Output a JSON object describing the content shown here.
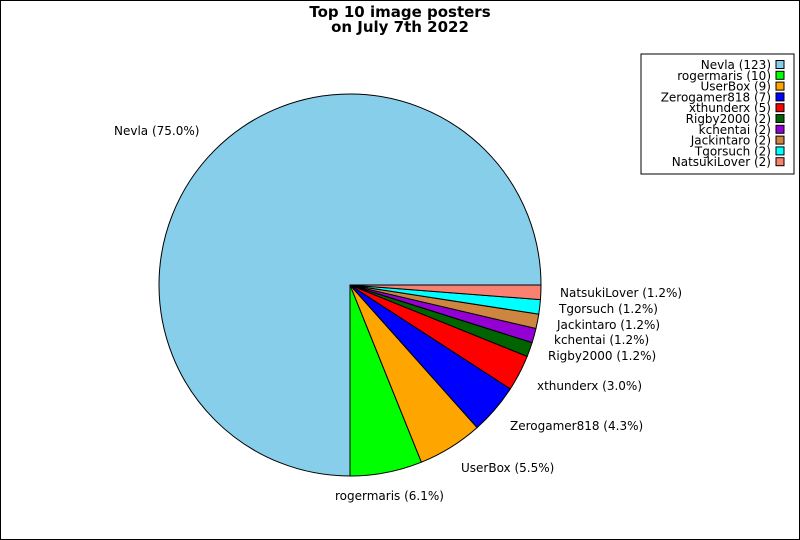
{
  "chart_data": {
    "type": "pie",
    "title": [
      "Top 10 image posters",
      "on July 7th 2022"
    ],
    "start_angle_deg": 0,
    "direction": "clockwise",
    "legend_placement": "top-right",
    "slices": [
      {
        "name": "Nevla",
        "count": 123,
        "percent_label": "Nevla (75.0%)",
        "legend_label": "Nevla (123)",
        "color": "#87ceeb"
      },
      {
        "name": "rogermaris",
        "count": 10,
        "percent_label": "rogermaris (6.1%)",
        "legend_label": "rogermaris (10)",
        "color": "#00ff00"
      },
      {
        "name": "UserBox",
        "count": 9,
        "percent_label": "UserBox (5.5%)",
        "legend_label": "UserBox (9)",
        "color": "#ffa500"
      },
      {
        "name": "Zerogamer818",
        "count": 7,
        "percent_label": "Zerogamer818 (4.3%)",
        "legend_label": "Zerogamer818 (7)",
        "color": "#0000ff"
      },
      {
        "name": "xthunderx",
        "count": 5,
        "percent_label": "xthunderx (3.0%)",
        "legend_label": "xthunderx (5)",
        "color": "#ff0000"
      },
      {
        "name": "Rigby2000",
        "count": 2,
        "percent_label": "Rigby2000 (1.2%)",
        "legend_label": "Rigby2000 (2)",
        "color": "#006400"
      },
      {
        "name": "kchentai",
        "count": 2,
        "percent_label": "kchentai (1.2%)",
        "legend_label": "kchentai (2)",
        "color": "#9400d3"
      },
      {
        "name": "Jackintaro",
        "count": 2,
        "percent_label": "Jackintaro (1.2%)",
        "legend_label": "Jackintaro (2)",
        "color": "#cd853f"
      },
      {
        "name": "Tgorsuch",
        "count": 2,
        "percent_label": "Tgorsuch (1.2%)",
        "legend_label": "Tgorsuch (2)",
        "color": "#00ffff"
      },
      {
        "name": "NatsukiLover",
        "count": 2,
        "percent_label": "NatsukiLover (1.2%)",
        "legend_label": "NatsukiLover (2)",
        "color": "#fa8072"
      }
    ]
  }
}
